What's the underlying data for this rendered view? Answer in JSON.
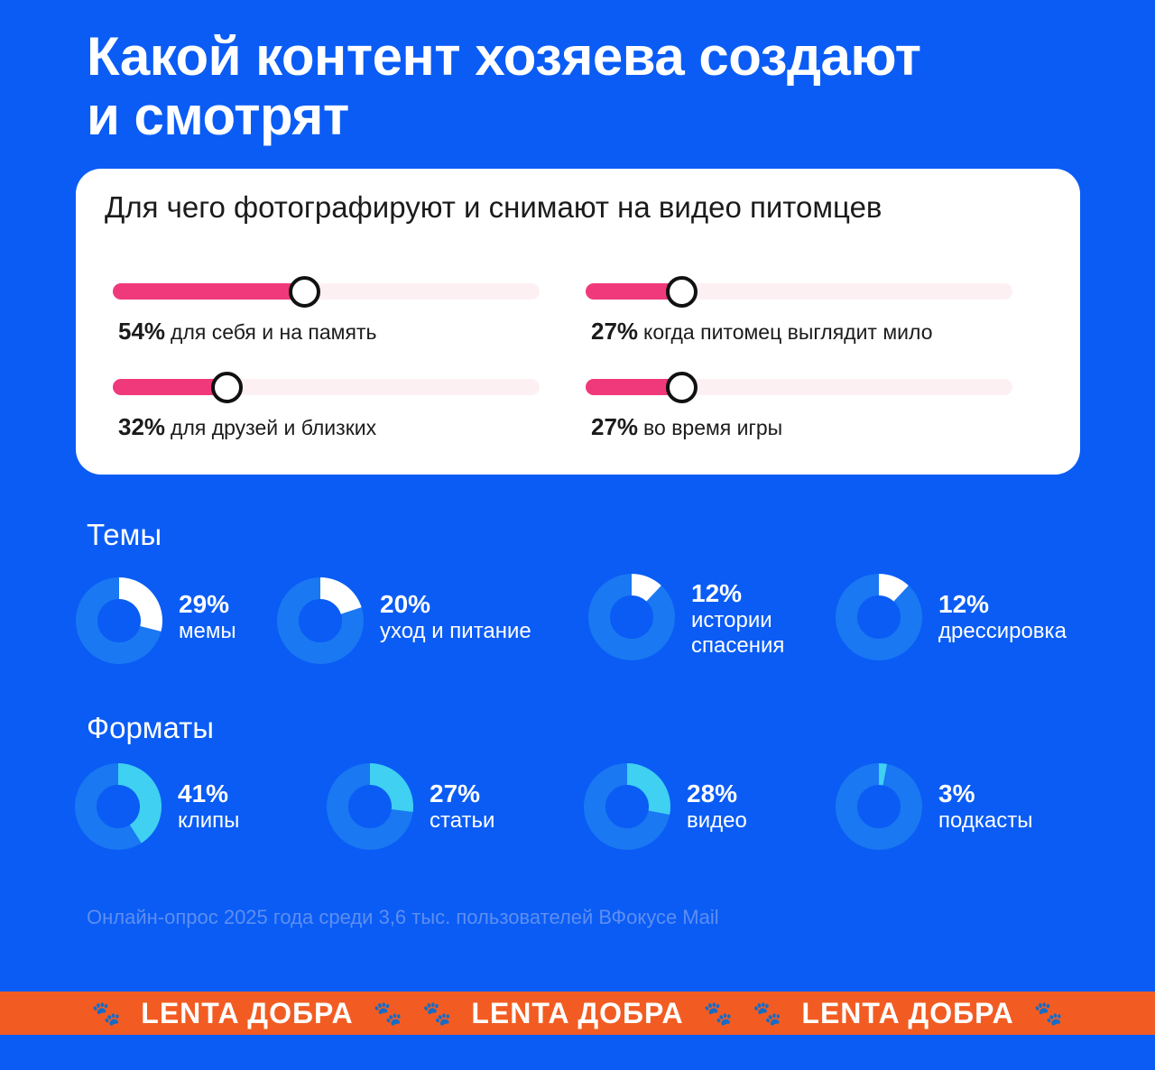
{
  "title_line1": "Какой контент хозяева создают",
  "title_line2": "и смотрят",
  "card": {
    "title": "Для чего фотографируют и снимают на видео питомцев"
  },
  "chart_data": [
    {
      "type": "bar",
      "title": "Для чего фотографируют и снимают на видео питомцев",
      "items": [
        {
          "pct_label": "54%",
          "label": "для себя и на память",
          "value": 54
        },
        {
          "pct_label": "27%",
          "label": "когда питомец выглядит мило",
          "value": 27
        },
        {
          "pct_label": "32%",
          "label": "для друзей и близких",
          "value": 32
        },
        {
          "pct_label": "27%",
          "label": "во время игры",
          "value": 27
        }
      ],
      "fill_color": "#f0397a",
      "track_color": "#fdf0f3"
    },
    {
      "type": "pie",
      "title": "Темы",
      "items": [
        {
          "pct_label": "29%",
          "lines": [
            "мемы"
          ],
          "value": 29
        },
        {
          "pct_label": "20%",
          "lines": [
            "уход и питание"
          ],
          "value": 20
        },
        {
          "pct_label": "12%",
          "lines": [
            "истории",
            "спасения"
          ],
          "value": 12
        },
        {
          "pct_label": "12%",
          "lines": [
            "дрессировка"
          ],
          "value": 12
        }
      ],
      "segment_color": "#ffffff",
      "ring_color": "#1a78f2"
    },
    {
      "type": "pie",
      "title": "Форматы",
      "items": [
        {
          "pct_label": "41%",
          "lines": [
            "клипы"
          ],
          "value": 41
        },
        {
          "pct_label": "27%",
          "lines": [
            "статьи"
          ],
          "value": 27
        },
        {
          "pct_label": "28%",
          "lines": [
            "видео"
          ],
          "value": 28
        },
        {
          "pct_label": "3%",
          "lines": [
            "подкасты"
          ],
          "value": 3
        }
      ],
      "segment_color": "#3fd0f2",
      "ring_color": "#1a78f2"
    }
  ],
  "note": "Онлайн-опрос 2025 года среди 3,6 тыс. пользователей ВФокусе Mail",
  "ribbon": {
    "brand": "LENTA ДОБРА",
    "repeat": 3,
    "paw_icon": "paw-icon",
    "color": "#f25c22"
  }
}
